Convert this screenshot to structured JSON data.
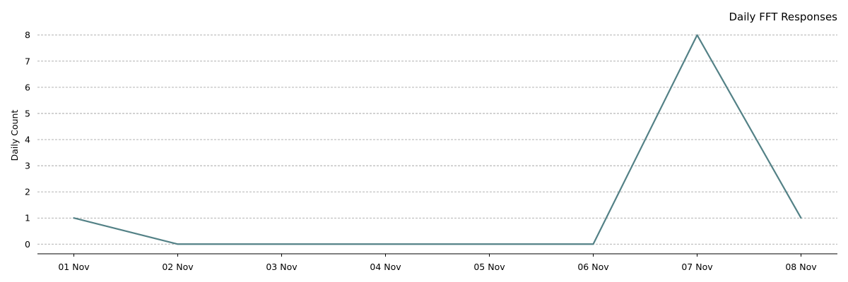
{
  "chart_data": {
    "type": "line",
    "title": "Daily FFT Responses",
    "xlabel": "",
    "ylabel": "Daily Count",
    "categories": [
      "01 Nov",
      "02 Nov",
      "03 Nov",
      "04 Nov",
      "05 Nov",
      "06 Nov",
      "07 Nov",
      "08 Nov"
    ],
    "series": [
      {
        "values": [
          1,
          0,
          0,
          0,
          0,
          0,
          8,
          1
        ]
      }
    ],
    "ylim": [
      -0.37,
      8.37
    ],
    "yticks": [
      "0",
      "1",
      "2",
      "3",
      "4",
      "5",
      "6",
      "7",
      "8"
    ],
    "grid": "horizontal",
    "line_color": "#538186"
  }
}
